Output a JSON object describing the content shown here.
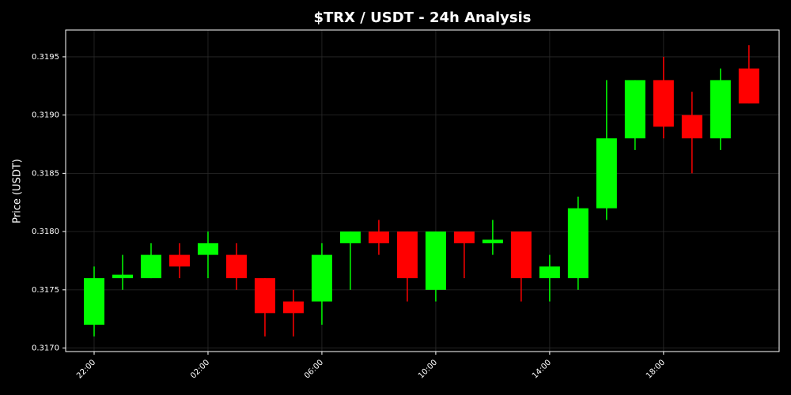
{
  "chart_data": {
    "type": "candlestick",
    "title": "$TRX / USDT - 24h Analysis",
    "y_label": "Price (USDT)",
    "categories": [
      "22:00",
      null,
      null,
      null,
      "02:00",
      null,
      null,
      null,
      "06:00",
      null,
      null,
      null,
      "10:00",
      null,
      null,
      null,
      "14:00",
      null,
      null,
      null,
      "18:00",
      null,
      null,
      null
    ],
    "open": [
      0.3172,
      0.3176,
      0.3176,
      0.3178,
      0.3178,
      0.3178,
      0.3176,
      0.3174,
      0.3174,
      0.3179,
      0.318,
      0.318,
      0.3175,
      0.318,
      0.3179,
      0.318,
      0.3176,
      0.3176,
      0.3182,
      0.3188,
      0.3193,
      0.319,
      0.3188,
      0.3194
    ],
    "high": [
      0.3177,
      0.3178,
      0.3179,
      0.3179,
      0.318,
      0.3179,
      0.3176,
      0.3175,
      0.3179,
      0.318,
      0.3181,
      0.318,
      0.318,
      0.318,
      0.3181,
      0.318,
      0.3178,
      0.3183,
      0.3193,
      0.3193,
      0.3195,
      0.3192,
      0.3194,
      0.3196
    ],
    "low": [
      0.3171,
      0.3175,
      0.3176,
      0.3176,
      0.3176,
      0.3175,
      0.3171,
      0.3171,
      0.3172,
      0.3175,
      0.3178,
      0.3174,
      0.3174,
      0.3176,
      0.3178,
      0.3174,
      0.3174,
      0.3175,
      0.3181,
      0.3187,
      0.3188,
      0.3185,
      0.3187,
      0.3191
    ],
    "close": [
      0.3176,
      0.31763,
      0.3178,
      0.3177,
      0.3179,
      0.3176,
      0.3173,
      0.3173,
      0.3178,
      0.318,
      0.3179,
      0.3176,
      0.318,
      0.3179,
      0.31793,
      0.3176,
      0.3177,
      0.3182,
      0.3188,
      0.3193,
      0.3189,
      0.3188,
      0.3193,
      0.3191
    ],
    "up_color": "#00ff00",
    "down_color": "#ff0000",
    "ylim": [
      0.31697,
      0.31973
    ],
    "yticks": [
      {
        "value": 0.317,
        "label": "0.3170"
      },
      {
        "value": 0.3175,
        "label": "0.3175"
      },
      {
        "value": 0.318,
        "label": "0.3180"
      },
      {
        "value": 0.3185,
        "label": "0.3185"
      },
      {
        "value": 0.319,
        "label": "0.3190"
      },
      {
        "value": 0.3195,
        "label": "0.3195"
      }
    ],
    "grid": true
  }
}
